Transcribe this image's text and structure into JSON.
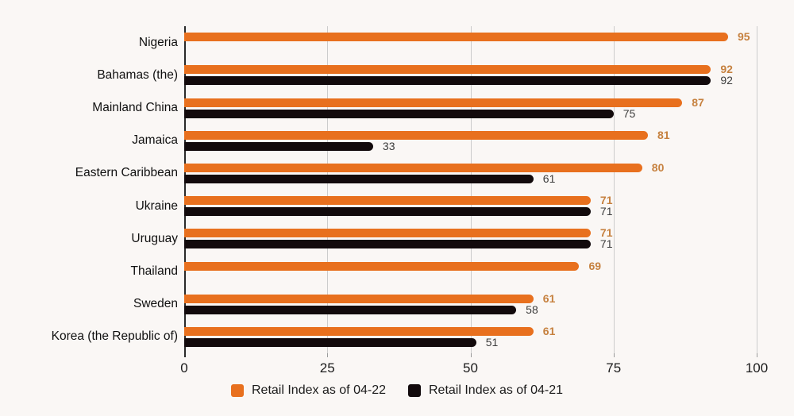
{
  "chart_data": {
    "type": "bar",
    "orientation": "horizontal",
    "title": "",
    "xlabel": "",
    "ylabel": "",
    "xlim": [
      0,
      100
    ],
    "xticks": [
      0,
      25,
      50,
      75,
      100
    ],
    "grid": true,
    "legend_position": "bottom",
    "background_color": "#faf7f5",
    "gridline_color": "#cccccc",
    "categories": [
      "Nigeria",
      "Bahamas (the)",
      "Mainland China",
      "Jamaica",
      "Eastern Caribbean",
      "Ukraine",
      "Uruguay",
      "Thailand",
      "Sweden",
      "Korea (the Republic of)"
    ],
    "series": [
      {
        "name": "Retail Index as of 04-22",
        "color": "#e8701e",
        "value_label_color": "#c6813f",
        "values": [
          95,
          92,
          87,
          81,
          80,
          71,
          71,
          69,
          61,
          61
        ]
      },
      {
        "name": "Retail Index as of 04-21",
        "color": "#120a0c",
        "value_label_color": "#3c3c3c",
        "values": [
          null,
          92,
          75,
          33,
          61,
          71,
          71,
          null,
          58,
          51
        ]
      }
    ]
  }
}
